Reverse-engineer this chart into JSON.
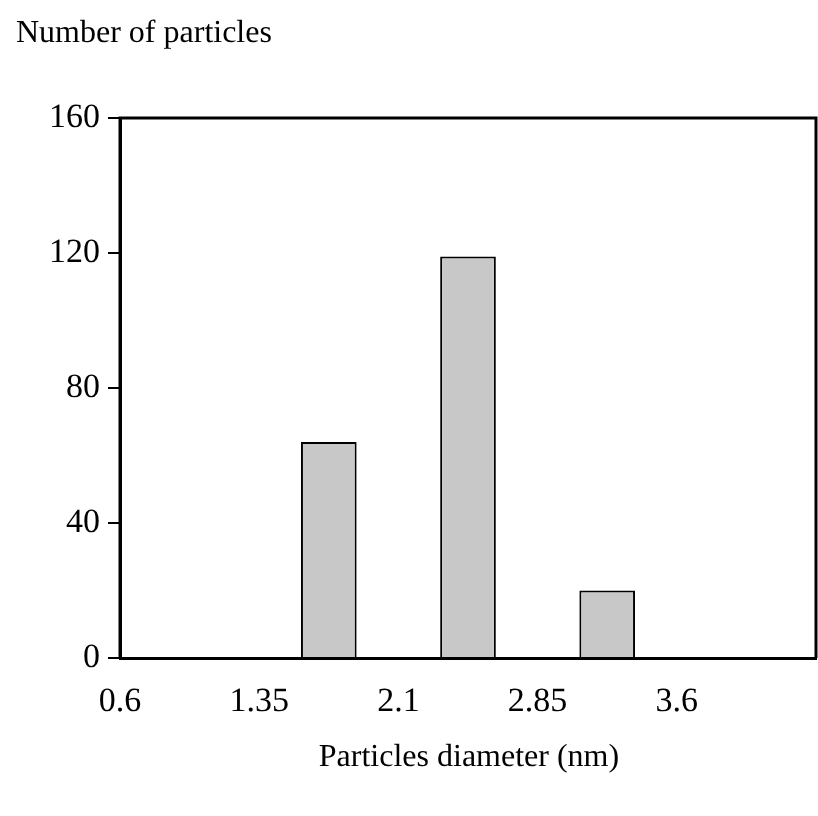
{
  "chart_data": {
    "type": "histogram",
    "xlabel": "Particles diameter (nm)",
    "ylabel": "Number of particles",
    "bins": [
      0.6,
      1.35,
      2.1,
      2.85,
      3.6,
      4.35
    ],
    "values": [
      0,
      64,
      119,
      20,
      0
    ],
    "color": "#c8c8c8",
    "xlim": [
      0.6,
      4.35
    ],
    "xticks": [
      0.6,
      1.35,
      2.1,
      2.85,
      3.6
    ],
    "ylim": [
      0,
      160
    ],
    "yticks": [
      0,
      40,
      80,
      120,
      160
    ],
    "grid": false,
    "legend": false
  }
}
